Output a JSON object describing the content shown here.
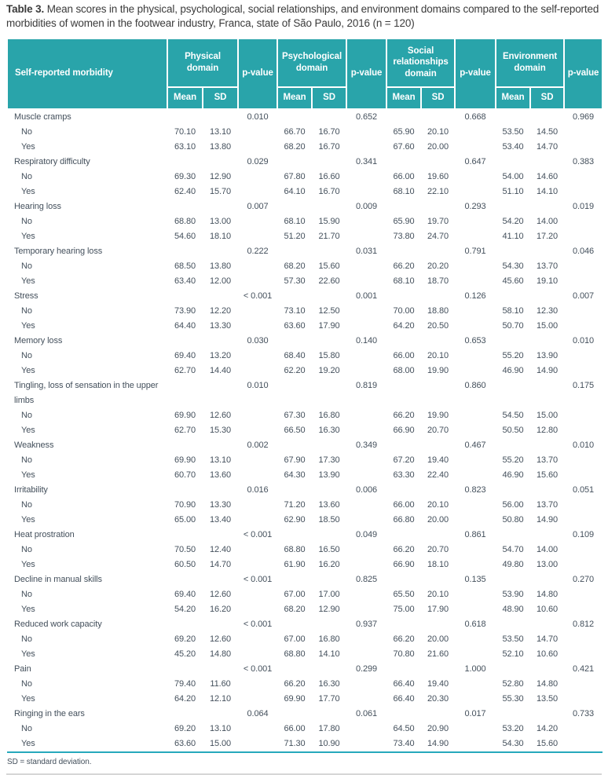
{
  "title": {
    "label": "Table 3.",
    "text": "Mean scores in the physical, psychological, social relationships, and environment domains compared to the self-reported morbidities of women in the footwear industry, Franca, state of São Paulo, 2016 (n = 120)"
  },
  "colors": {
    "header_bg": "#29a4aa",
    "header_text": "#ffffff",
    "body_text": "#44505c",
    "teal_rule": "#27a9bc",
    "gray_rule": "#d6d6d6"
  },
  "header": {
    "morbidity": "Self-reported morbidity",
    "pvalue": "p-value",
    "mean": "Mean",
    "sd": "SD",
    "domains": [
      "Physical domain",
      "Psychological domain",
      "Social relationships domain",
      "Environment domain"
    ]
  },
  "labels": {
    "no": "No",
    "yes": "Yes"
  },
  "footnote": "SD = standard deviation.",
  "sections": [
    {
      "name": "Muscle cramps",
      "p": [
        "0.010",
        "0.652",
        "0.668",
        "0.969"
      ],
      "no": [
        "70.10",
        "13.10",
        "66.70",
        "16.70",
        "65.90",
        "20.10",
        "53.50",
        "14.50"
      ],
      "yes": [
        "63.10",
        "13.80",
        "68.20",
        "16.70",
        "67.60",
        "20.00",
        "53.40",
        "14.70"
      ]
    },
    {
      "name": "Respiratory difficulty",
      "p": [
        "0.029",
        "0.341",
        "0.647",
        "0.383"
      ],
      "no": [
        "69.30",
        "12.90",
        "67.80",
        "16.60",
        "66.00",
        "19.60",
        "54.00",
        "14.60"
      ],
      "yes": [
        "62.40",
        "15.70",
        "64.10",
        "16.70",
        "68.10",
        "22.10",
        "51.10",
        "14.10"
      ]
    },
    {
      "name": "Hearing loss",
      "p": [
        "0.007",
        "0.009",
        "0.293",
        "0.019"
      ],
      "no": [
        "68.80",
        "13.00",
        "68.10",
        "15.90",
        "65.90",
        "19.70",
        "54.20",
        "14.00"
      ],
      "yes": [
        "54.60",
        "18.10",
        "51.20",
        "21.70",
        "73.80",
        "24.70",
        "41.10",
        "17.20"
      ]
    },
    {
      "name": "Temporary hearing loss",
      "p": [
        "0.222",
        "0.031",
        "0.791",
        "0.046"
      ],
      "no": [
        "68.50",
        "13.80",
        "68.20",
        "15.60",
        "66.20",
        "20.20",
        "54.30",
        "13.70"
      ],
      "yes": [
        "63.40",
        "12.00",
        "57.30",
        "22.60",
        "68.10",
        "18.70",
        "45.60",
        "19.10"
      ]
    },
    {
      "name": "Stress",
      "p": [
        "< 0.001",
        "0.001",
        "0.126",
        "0.007"
      ],
      "no": [
        "73.90",
        "12.20",
        "73.10",
        "12.50",
        "70.00",
        "18.80",
        "58.10",
        "12.30"
      ],
      "yes": [
        "64.40",
        "13.30",
        "63.60",
        "17.90",
        "64.20",
        "20.50",
        "50.70",
        "15.00"
      ]
    },
    {
      "name": "Memory loss",
      "p": [
        "0.030",
        "0.140",
        "0.653",
        "0.010"
      ],
      "no": [
        "69.40",
        "13.20",
        "68.40",
        "15.80",
        "66.00",
        "20.10",
        "55.20",
        "13.90"
      ],
      "yes": [
        "62.70",
        "14.40",
        "62.20",
        "19.20",
        "68.00",
        "19.90",
        "46.90",
        "14.90"
      ]
    },
    {
      "name": "Tingling, loss of sensation in the upper limbs",
      "p": [
        "0.010",
        "0.819",
        "0.860",
        "0.175"
      ],
      "no": [
        "69.90",
        "12.60",
        "67.30",
        "16.80",
        "66.20",
        "19.90",
        "54.50",
        "15.00"
      ],
      "yes": [
        "62.70",
        "15.30",
        "66.50",
        "16.30",
        "66.90",
        "20.70",
        "50.50",
        "12.80"
      ]
    },
    {
      "name": "Weakness",
      "p": [
        "0.002",
        "0.349",
        "0.467",
        "0.010"
      ],
      "no": [
        "69.90",
        "13.10",
        "67.90",
        "17.30",
        "67.20",
        "19.40",
        "55.20",
        "13.70"
      ],
      "yes": [
        "60.70",
        "13.60",
        "64.30",
        "13.90",
        "63.30",
        "22.40",
        "46.90",
        "15.60"
      ]
    },
    {
      "name": "Irritability",
      "p": [
        "0.016",
        "0.006",
        "0.823",
        "0.051"
      ],
      "no": [
        "70.90",
        "13.30",
        "71.20",
        "13.60",
        "66.00",
        "20.10",
        "56.00",
        "13.70"
      ],
      "yes": [
        "65.00",
        "13.40",
        "62.90",
        "18.50",
        "66.80",
        "20.00",
        "50.80",
        "14.90"
      ]
    },
    {
      "name": "Heat prostration",
      "p": [
        "< 0.001",
        "0.049",
        "0.861",
        "0.109"
      ],
      "no": [
        "70.50",
        "12.40",
        "68.80",
        "16.50",
        "66.20",
        "20.70",
        "54.70",
        "14.00"
      ],
      "yes": [
        "60.50",
        "14.70",
        "61.90",
        "16.20",
        "66.90",
        "18.10",
        "49.80",
        "13.00"
      ]
    },
    {
      "name": "Decline in manual skills",
      "p": [
        "< 0.001",
        "0.825",
        "0.135",
        "0.270"
      ],
      "no": [
        "69.40",
        "12.60",
        "67.00",
        "17.00",
        "65.50",
        "20.10",
        "53.90",
        "14.80"
      ],
      "yes": [
        "54.20",
        "16.20",
        "68.20",
        "12.90",
        "75.00",
        "17.90",
        "48.90",
        "10.60"
      ]
    },
    {
      "name": "Reduced work capacity",
      "p": [
        "< 0.001",
        "0.937",
        "0.618",
        "0.812"
      ],
      "no": [
        "69.20",
        "12.60",
        "67.00",
        "16.80",
        "66.20",
        "20.00",
        "53.50",
        "14.70"
      ],
      "yes": [
        "45.20",
        "14.80",
        "68.80",
        "14.10",
        "70.80",
        "21.60",
        "52.10",
        "10.60"
      ]
    },
    {
      "name": "Pain",
      "p": [
        "< 0.001",
        "0.299",
        "1.000",
        "0.421"
      ],
      "no": [
        "79.40",
        "11.60",
        "66.20",
        "16.30",
        "66.40",
        "19.40",
        "52.80",
        "14.80"
      ],
      "yes": [
        "64.20",
        "12.10",
        "69.90",
        "17.70",
        "66.40",
        "20.30",
        "55.30",
        "13.50"
      ]
    },
    {
      "name": "Ringing in the ears",
      "p": [
        "0.064",
        "0.061",
        "0.017",
        "0.733"
      ],
      "no": [
        "69.20",
        "13.10",
        "66.00",
        "17.80",
        "64.50",
        "20.90",
        "53.20",
        "14.20"
      ],
      "yes": [
        "63.60",
        "15.00",
        "71.30",
        "10.90",
        "73.40",
        "14.90",
        "54.30",
        "15.60"
      ]
    }
  ]
}
